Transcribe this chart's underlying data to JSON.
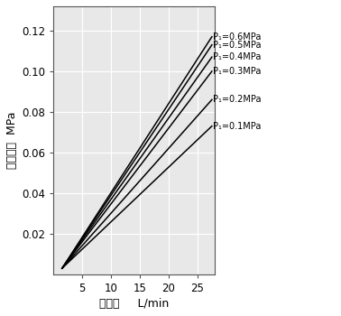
{
  "xlabel_chinese": "流　量",
  "xlabel_unit": "L/min",
  "ylabel_chinese": "圧力降下",
  "ylabel_unit": "MPa",
  "xlim": [
    0,
    28
  ],
  "ylim": [
    0,
    0.132
  ],
  "xticks": [
    5,
    10,
    15,
    20,
    25
  ],
  "yticks": [
    0.02,
    0.04,
    0.06,
    0.08,
    0.1,
    0.12
  ],
  "background_color": "#e8e8e8",
  "lines": [
    {
      "label": "P₁=0.6MPa",
      "end_y": 0.117
    },
    {
      "label": "P₁=0.5MPa",
      "end_y": 0.113
    },
    {
      "label": "P₁=0.4MPa",
      "end_y": 0.107
    },
    {
      "label": "P₁=0.3MPa",
      "end_y": 0.1
    },
    {
      "label": "P₁=0.2MPa",
      "end_y": 0.086
    },
    {
      "label": "P₁=0.1MPa",
      "end_y": 0.073
    }
  ],
  "line_color": "#000000",
  "label_fontsize": 7.0,
  "tick_fontsize": 8.5
}
